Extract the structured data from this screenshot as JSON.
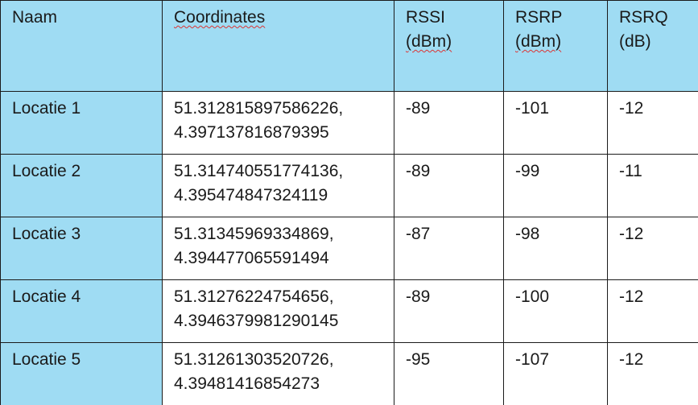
{
  "colors": {
    "header_bg": "#9fdcf3",
    "name_col_bg": "#9fdcf3",
    "border": "#1b1b1b",
    "spellcheck_underline": "#d33"
  },
  "table": {
    "headers": {
      "naam": "Naam",
      "coordinates": "Coordinates",
      "rssi": "RSSI",
      "rssi_unit": "(dBm)",
      "rsrp": "RSRP",
      "rsrp_unit": "(dBm)",
      "rsrq": "RSRQ",
      "rsrq_unit": "(dB)"
    },
    "rows": [
      {
        "naam": "Locatie 1",
        "lat": "51.312815897586226,",
        "lon": "4.397137816879395",
        "rssi": "-89",
        "rsrp": "-101",
        "rsrq": "-12"
      },
      {
        "naam": "Locatie 2",
        "lat": "51.314740551774136,",
        "lon": "4.395474847324119",
        "rssi": "-89",
        "rsrp": "-99",
        "rsrq": "-11"
      },
      {
        "naam": "Locatie 3",
        "lat": "51.31345969334869,",
        "lon": "4.394477065591494",
        "rssi": "-87",
        "rsrp": "-98",
        "rsrq": "-12"
      },
      {
        "naam": "Locatie 4",
        "lat": "51.31276224754656,",
        "lon": "4.3946379981290145",
        "rssi": "-89",
        "rsrp": "-100",
        "rsrq": "-12"
      },
      {
        "naam": "Locatie 5",
        "lat": "51.31261303520726,",
        "lon": "4.39481416854273",
        "rssi": "-95",
        "rsrp": "-107",
        "rsrq": "-12"
      }
    ]
  }
}
